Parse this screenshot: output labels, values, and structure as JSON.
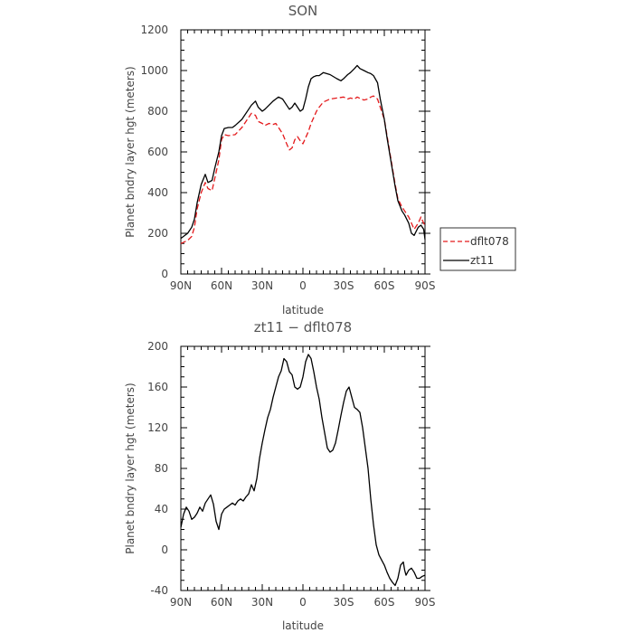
{
  "chart_data": [
    {
      "type": "line",
      "title": "SON",
      "xlabel": "latitude",
      "ylabel": "Planet bndry layer hgt (meters)",
      "x_tick_labels": [
        "90N",
        "60N",
        "30N",
        "0",
        "30S",
        "60S",
        "90S"
      ],
      "x_tick_values": [
        -90,
        -60,
        -30,
        0,
        30,
        60,
        90
      ],
      "xlim": [
        -90,
        90
      ],
      "ylim": [
        0,
        1200
      ],
      "y_ticks": [
        0,
        200,
        400,
        600,
        800,
        1000,
        1200
      ],
      "legend": "outside-right",
      "series": [
        {
          "name": "dflt078",
          "color": "#e41a1c",
          "dash": "dashed",
          "x": [
            -90,
            -85,
            -82,
            -80,
            -78,
            -75,
            -72,
            -70,
            -67,
            -65,
            -62,
            -60,
            -58,
            -55,
            -50,
            -45,
            -40,
            -38,
            -35,
            -33,
            -30,
            -28,
            -25,
            -22,
            -20,
            -18,
            -15,
            -12,
            -10,
            -8,
            -6,
            -4,
            -2,
            0,
            2,
            4,
            6,
            8,
            10,
            12,
            15,
            20,
            25,
            30,
            33,
            35,
            38,
            40,
            43,
            45,
            48,
            50,
            52,
            55,
            57,
            60,
            62,
            64,
            66,
            68,
            70,
            73,
            75,
            78,
            80,
            82,
            85,
            87,
            89,
            90
          ],
          "y": [
            150,
            165,
            185,
            230,
            320,
            400,
            450,
            420,
            410,
            470,
            560,
            660,
            685,
            680,
            685,
            720,
            770,
            790,
            780,
            750,
            740,
            730,
            740,
            735,
            740,
            720,
            690,
            640,
            610,
            620,
            660,
            675,
            655,
            640,
            670,
            700,
            740,
            770,
            800,
            820,
            845,
            860,
            865,
            870,
            860,
            865,
            860,
            870,
            860,
            855,
            860,
            870,
            875,
            860,
            820,
            760,
            680,
            600,
            520,
            440,
            370,
            330,
            310,
            280,
            250,
            220,
            250,
            280,
            250,
            240
          ]
        },
        {
          "name": "zt11",
          "color": "#000000",
          "dash": "solid",
          "x": [
            -90,
            -85,
            -82,
            -80,
            -78,
            -75,
            -72,
            -70,
            -67,
            -65,
            -62,
            -60,
            -58,
            -55,
            -52,
            -50,
            -45,
            -40,
            -38,
            -35,
            -33,
            -30,
            -28,
            -25,
            -22,
            -20,
            -18,
            -15,
            -12,
            -10,
            -8,
            -6,
            -4,
            -2,
            0,
            2,
            4,
            6,
            8,
            10,
            12,
            15,
            20,
            25,
            28,
            30,
            33,
            35,
            38,
            40,
            42,
            45,
            48,
            50,
            52,
            55,
            57,
            60,
            62,
            64,
            66,
            68,
            70,
            73,
            75,
            78,
            80,
            82,
            85,
            87,
            89,
            90
          ],
          "y": [
            175,
            200,
            230,
            270,
            350,
            440,
            490,
            450,
            460,
            520,
            600,
            680,
            715,
            720,
            720,
            730,
            760,
            810,
            830,
            850,
            820,
            800,
            810,
            830,
            850,
            860,
            870,
            860,
            830,
            810,
            820,
            840,
            820,
            800,
            810,
            860,
            920,
            960,
            970,
            975,
            975,
            990,
            980,
            960,
            950,
            960,
            980,
            990,
            1010,
            1025,
            1010,
            1000,
            990,
            985,
            975,
            940,
            860,
            760,
            670,
            590,
            510,
            430,
            360,
            310,
            290,
            250,
            200,
            190,
            230,
            240,
            220,
            170
          ]
        }
      ]
    },
    {
      "type": "line",
      "title": "zt11 − dflt078",
      "xlabel": "latitude",
      "ylabel": "Planet bndry layer hgt (meters)",
      "x_tick_labels": [
        "90N",
        "60N",
        "30N",
        "0",
        "30S",
        "60S",
        "90S"
      ],
      "x_tick_values": [
        -90,
        -60,
        -30,
        0,
        30,
        60,
        90
      ],
      "xlim": [
        -90,
        90
      ],
      "ylim": [
        -40,
        200
      ],
      "y_ticks": [
        -40,
        0,
        40,
        80,
        120,
        160,
        200
      ],
      "series": [
        {
          "color": "#000000",
          "dash": "solid",
          "x": [
            -90,
            -88,
            -86,
            -84,
            -82,
            -80,
            -78,
            -76,
            -74,
            -72,
            -70,
            -68,
            -66,
            -64,
            -62,
            -60,
            -58,
            -56,
            -54,
            -52,
            -50,
            -48,
            -46,
            -44,
            -42,
            -40,
            -38,
            -36,
            -34,
            -32,
            -30,
            -28,
            -26,
            -24,
            -22,
            -20,
            -18,
            -16,
            -14,
            -12,
            -10,
            -8,
            -6,
            -4,
            -2,
            0,
            2,
            4,
            6,
            8,
            10,
            12,
            14,
            16,
            18,
            20,
            22,
            24,
            26,
            28,
            30,
            32,
            34,
            36,
            38,
            40,
            42,
            44,
            46,
            48,
            50,
            52,
            54,
            56,
            58,
            60,
            62,
            64,
            66,
            68,
            70,
            72,
            74,
            75,
            76,
            78,
            80,
            82,
            84,
            86,
            88,
            90
          ],
          "y": [
            22,
            35,
            42,
            38,
            30,
            32,
            36,
            42,
            38,
            46,
            50,
            54,
            45,
            28,
            20,
            35,
            40,
            42,
            44,
            46,
            44,
            48,
            50,
            48,
            52,
            55,
            64,
            58,
            70,
            90,
            105,
            118,
            130,
            138,
            150,
            160,
            170,
            176,
            188,
            185,
            175,
            172,
            160,
            158,
            160,
            170,
            185,
            192,
            188,
            175,
            160,
            148,
            130,
            115,
            100,
            96,
            98,
            105,
            118,
            132,
            145,
            156,
            160,
            150,
            140,
            138,
            135,
            120,
            100,
            80,
            50,
            25,
            5,
            -5,
            -10,
            -15,
            -22,
            -28,
            -32,
            -35,
            -28,
            -15,
            -12,
            -20,
            -25,
            -20,
            -18,
            -22,
            -28,
            -28,
            -26,
            -25
          ]
        }
      ]
    }
  ]
}
